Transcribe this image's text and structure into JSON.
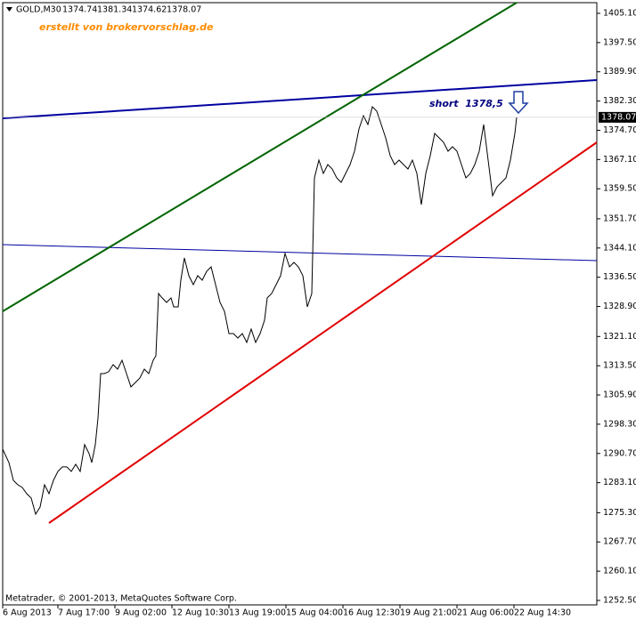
{
  "chart_data": {
    "type": "line",
    "title": "GOLD,M30",
    "ohlc": [
      1374.74,
      1381.34,
      1374.62,
      1378.07
    ],
    "annotations": [
      "erstellt von brokervorschlag.de",
      "short  1378,5"
    ],
    "copyright": "Metatrader, © 2001-2013, MetaQuotes Software Corp.",
    "current_price": 1378.07,
    "color": "#000000",
    "x": [
      0,
      7,
      12,
      17,
      22,
      27,
      32,
      37,
      42,
      47,
      52,
      57,
      62,
      67,
      72,
      77,
      82,
      87,
      92,
      97,
      100,
      104,
      107,
      110,
      114,
      119,
      124,
      129,
      134,
      139,
      144,
      149,
      154,
      159,
      164,
      169,
      172,
      175,
      179,
      184,
      189,
      192,
      197,
      200,
      204,
      209,
      214,
      219,
      224,
      229,
      234,
      239,
      244,
      249,
      254,
      259,
      264,
      269,
      274,
      279,
      284,
      289,
      294,
      297,
      302,
      307,
      312,
      317,
      322,
      327,
      332,
      337,
      342,
      347,
      350,
      355,
      360,
      365,
      370,
      375,
      380,
      385,
      390,
      395,
      400,
      405,
      410,
      415,
      420,
      425,
      430,
      435,
      440,
      445,
      450,
      455,
      460,
      465,
      470,
      475,
      480,
      485,
      490,
      495,
      500,
      505,
      510,
      515,
      520,
      525,
      530,
      535,
      540,
      545,
      550,
      555,
      560,
      565,
      570,
      575,
      577
    ],
    "values": [
      1291.81,
      1288.34,
      1283.72,
      1282.56,
      1281.87,
      1280.25,
      1279.1,
      1274.93,
      1276.78,
      1282.56,
      1280.25,
      1283.72,
      1286.03,
      1287.19,
      1287.19,
      1286.03,
      1287.88,
      1286.03,
      1292.97,
      1290.66,
      1288.34,
      1292.97,
      1299.9,
      1311.46,
      1311.46,
      1311.93,
      1313.78,
      1312.62,
      1314.93,
      1311.46,
      1308.0,
      1309.15,
      1310.31,
      1312.62,
      1311.46,
      1314.93,
      1316.09,
      1332.27,
      1331.12,
      1329.96,
      1331.12,
      1328.8,
      1328.8,
      1335.74,
      1341.52,
      1336.9,
      1334.58,
      1336.9,
      1335.74,
      1338.05,
      1339.21,
      1334.58,
      1329.96,
      1327.65,
      1321.87,
      1321.87,
      1320.71,
      1321.87,
      1319.56,
      1323.02,
      1319.56,
      1321.87,
      1325.34,
      1331.12,
      1332.27,
      1334.58,
      1336.9,
      1342.68,
      1339.21,
      1340.36,
      1339.21,
      1336.9,
      1328.8,
      1332.27,
      1362.33,
      1366.95,
      1363.48,
      1365.8,
      1364.64,
      1362.33,
      1361.17,
      1363.48,
      1365.8,
      1369.26,
      1375.04,
      1378.51,
      1376.2,
      1380.82,
      1379.67,
      1376.2,
      1372.73,
      1368.11,
      1365.8,
      1366.95,
      1365.8,
      1364.64,
      1366.95,
      1363.48,
      1355.39,
      1363.48,
      1368.11,
      1373.89,
      1372.73,
      1371.58,
      1369.26,
      1370.42,
      1369.26,
      1365.8,
      1362.33,
      1363.48,
      1365.8,
      1369.26,
      1376.2,
      1366.95,
      1357.7,
      1360.02,
      1361.17,
      1362.33,
      1366.95,
      1373.89,
      1378.07
    ],
    "xlim": [
      0,
      667
    ],
    "xticks": [
      {
        "value": 0,
        "label": "6 Aug 2013"
      },
      {
        "value": 62,
        "label": "7 Aug 17:00"
      },
      {
        "value": 126,
        "label": "9 Aug 02:00"
      },
      {
        "value": 190,
        "label": "12 Aug 10:30"
      },
      {
        "value": 254,
        "label": "13 Aug 19:00"
      },
      {
        "value": 318,
        "label": "15 Aug 04:00"
      },
      {
        "value": 382,
        "label": "16 Aug 12:30"
      },
      {
        "value": 446,
        "label": "19 Aug 21:00"
      },
      {
        "value": 510,
        "label": "21 Aug 06:00"
      },
      {
        "value": 574,
        "label": "22 Aug 14:30"
      }
    ],
    "ylim": [
      1251.34,
      1407.87
    ],
    "yticks": [
      {
        "value": 1405.1,
        "label": "1405.10"
      },
      {
        "value": 1397.5,
        "label": "1397.50"
      },
      {
        "value": 1389.9,
        "label": "1389.90"
      },
      {
        "value": 1382.3,
        "label": "1382.30"
      },
      {
        "value": 1374.7,
        "label": "1374.70"
      },
      {
        "value": 1367.1,
        "label": "1367.10"
      },
      {
        "value": 1359.5,
        "label": "1359.50"
      },
      {
        "value": 1351.7,
        "label": "1351.70"
      },
      {
        "value": 1344.1,
        "label": "1344.10"
      },
      {
        "value": 1336.5,
        "label": "1336.50"
      },
      {
        "value": 1328.9,
        "label": "1328.90"
      },
      {
        "value": 1321.1,
        "label": "1321.10"
      },
      {
        "value": 1313.5,
        "label": "1313.50"
      },
      {
        "value": 1305.9,
        "label": "1305.90"
      },
      {
        "value": 1298.3,
        "label": "1298.30"
      },
      {
        "value": 1290.7,
        "label": "1290.70"
      },
      {
        "value": 1283.1,
        "label": "1283.10"
      },
      {
        "value": 1275.3,
        "label": "1275.30"
      },
      {
        "value": 1267.7,
        "label": "1267.70"
      },
      {
        "value": 1260.1,
        "label": "1260.10"
      },
      {
        "value": 1252.5,
        "label": "1252.50"
      }
    ]
  }
}
